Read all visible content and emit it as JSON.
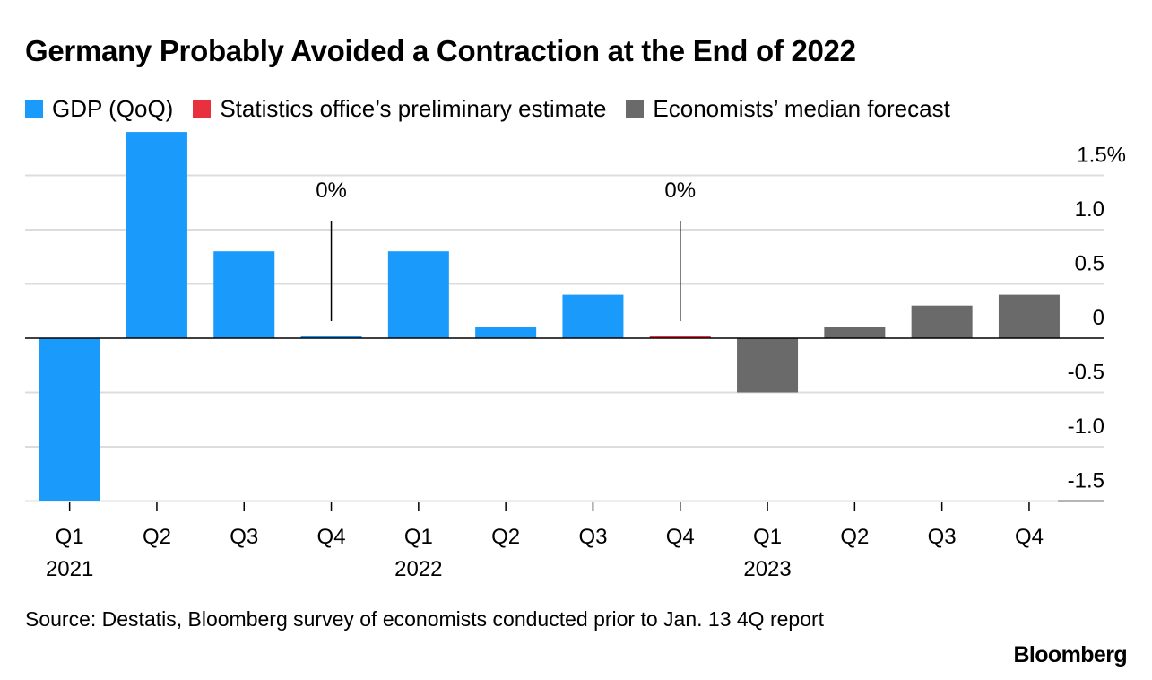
{
  "title": "Germany Probably Avoided a Contraction at the End of 2022",
  "legend": [
    {
      "label": "GDP (QoQ)",
      "color": "#1a9bfc"
    },
    {
      "label": "Statistics office’s preliminary estimate",
      "color": "#e8303f"
    },
    {
      "label": "Economists’ median forecast",
      "color": "#6a6a6a"
    }
  ],
  "source": "Source: Destatis, Bloomberg survey of economists conducted prior to Jan. 13 4Q report",
  "brand": "Bloomberg",
  "chart_data": {
    "type": "bar",
    "categories": [
      "Q1",
      "Q2",
      "Q3",
      "Q4",
      "Q1",
      "Q2",
      "Q3",
      "Q4",
      "Q1",
      "Q2",
      "Q3",
      "Q4"
    ],
    "year_labels": [
      "2021",
      "",
      "",
      "",
      "2022",
      "",
      "",
      "",
      "2023",
      "",
      "",
      ""
    ],
    "values": [
      -1.5,
      1.9,
      0.8,
      0.0,
      0.8,
      0.1,
      0.4,
      0.0,
      -0.5,
      0.1,
      0.3,
      0.4
    ],
    "bar_series": [
      "GDP (QoQ)",
      "GDP (QoQ)",
      "GDP (QoQ)",
      "GDP (QoQ)",
      "GDP (QoQ)",
      "GDP (QoQ)",
      "GDP (QoQ)",
      "Statistics office’s preliminary estimate",
      "Economists’ median forecast",
      "Economists’ median forecast",
      "Economists’ median forecast",
      "Economists’ median forecast"
    ],
    "y_ticks": [
      1.5,
      1.0,
      0.5,
      0,
      -0.5,
      -1.0,
      -1.5
    ],
    "y_tick_labels": [
      "1.5%",
      "1.0",
      "0.5",
      "0",
      "-0.5",
      "-1.0",
      "-1.5"
    ],
    "ylim": [
      -1.5,
      1.9
    ],
    "annotations": [
      {
        "index": 3,
        "text": "0%"
      },
      {
        "index": 7,
        "text": "0%"
      }
    ],
    "xlabel": "",
    "ylabel": "",
    "grid": true
  }
}
